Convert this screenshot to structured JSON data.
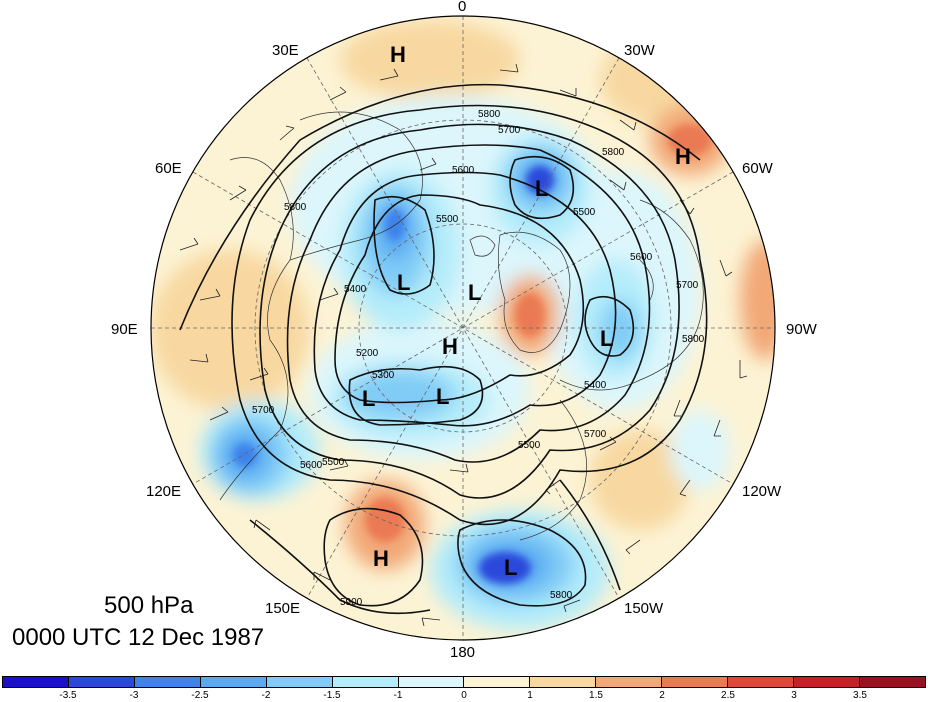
{
  "map": {
    "title_level": "500 hPa",
    "title_time": "0000 UTC 12 Dec 1987",
    "longitude_labels": [
      "0",
      "30W",
      "60W",
      "90W",
      "120W",
      "150W",
      "180",
      "150E",
      "120E",
      "90E",
      "60E",
      "30E"
    ],
    "pressure_centers": [
      {
        "type": "H",
        "label": "H"
      },
      {
        "type": "H",
        "label": "H"
      },
      {
        "type": "L",
        "label": "L"
      },
      {
        "type": "L",
        "label": "L"
      },
      {
        "type": "L",
        "label": "L"
      },
      {
        "type": "L",
        "label": "L"
      },
      {
        "type": "H",
        "label": "H"
      },
      {
        "type": "L",
        "label": "L"
      },
      {
        "type": "L",
        "label": "L"
      },
      {
        "type": "H",
        "label": "H"
      },
      {
        "type": "L",
        "label": "L"
      }
    ],
    "contour_labels": [
      "5800",
      "5700",
      "5600",
      "5500",
      "5400",
      "5300",
      "5200",
      "5500",
      "5600",
      "5700",
      "5800",
      "5500",
      "5400",
      "5700",
      "5800",
      "5900",
      "5800",
      "5500",
      "5600",
      "5700",
      "5800"
    ]
  },
  "colorbar": {
    "ticks": [
      "-3.5",
      "-3",
      "-2.5",
      "-2",
      "-1.5",
      "-1",
      "0",
      "1",
      "1.5",
      "2",
      "2.5",
      "3",
      "3.5"
    ],
    "colors": [
      "#1a10c8",
      "#2a48dc",
      "#3e82ec",
      "#5aaaf2",
      "#80ccf6",
      "#b4ecfa",
      "#dcf6fc",
      "#fcf3d4",
      "#f8d8a0",
      "#f2a877",
      "#ea7a52",
      "#e0473a",
      "#c42028",
      "#9c0f22"
    ]
  }
}
